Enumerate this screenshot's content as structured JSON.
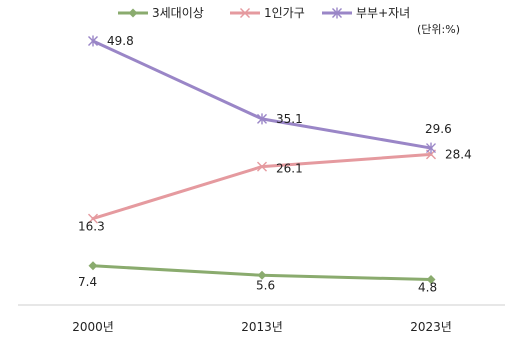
{
  "chart_data": {
    "type": "line",
    "unit_note": "(단위:%)",
    "categories": [
      "2000년",
      "2013년",
      "2023년"
    ],
    "series": [
      {
        "name": "3세대이상",
        "values": [
          7.4,
          5.6,
          4.8
        ],
        "value_labels": [
          "7.4",
          "5.6",
          "4.8"
        ],
        "color": "#8aab6e",
        "marker": "diamond"
      },
      {
        "name": "1인가구",
        "values": [
          16.3,
          26.1,
          28.4
        ],
        "value_labels": [
          "16.3",
          "26.1",
          "28.4"
        ],
        "color": "#e59a9f",
        "marker": "x"
      },
      {
        "name": "부부+자녀",
        "values": [
          49.8,
          35.1,
          29.6
        ],
        "value_labels": [
          "49.8",
          "35.1",
          "29.6"
        ],
        "color": "#9a86c7",
        "marker": "asterisk"
      }
    ],
    "ylim": [
      0,
      55
    ],
    "grid": false,
    "legend_position": "top-center"
  }
}
